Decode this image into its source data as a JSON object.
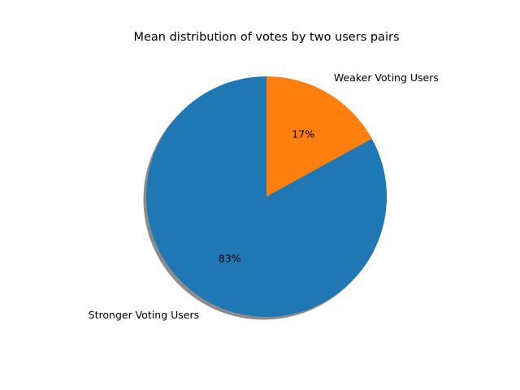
{
  "chart_data": {
    "type": "pie",
    "title": "Mean distribution of votes by two users pairs",
    "categories": [
      "Weaker Voting Users",
      "Stronger Voting Users"
    ],
    "values": [
      17,
      83
    ],
    "percent_labels": [
      "17%",
      "83%"
    ],
    "colors": [
      "#ff7f0e",
      "#1f77b4"
    ],
    "start_angle_deg": 90,
    "direction": "clockwise",
    "shadow": true,
    "legend": "none"
  }
}
